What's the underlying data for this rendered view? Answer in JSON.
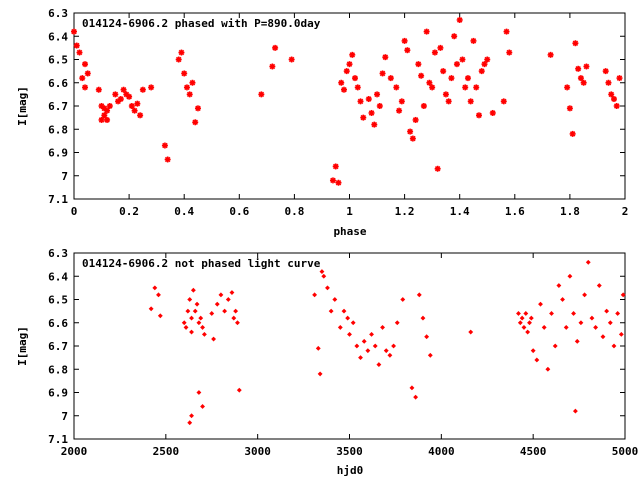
{
  "chart_data": [
    {
      "type": "scatter",
      "title": "014124-6906.2 phased with P=890.0day",
      "xlabel": "phase",
      "ylabel": "I[mag]",
      "xlim": [
        0,
        2
      ],
      "ylim": [
        7.1,
        6.3
      ],
      "y_inverted": true,
      "xticks": [
        "0",
        "0.2",
        "0.4",
        "0.6",
        "0.8",
        "1",
        "1.2",
        "1.4",
        "1.6",
        "1.8",
        "2"
      ],
      "xtick_values": [
        0,
        0.2,
        0.4,
        0.6,
        0.8,
        1.0,
        1.2,
        1.4,
        1.6,
        1.8,
        2.0
      ],
      "yticks": [
        "6.3",
        "6.4",
        "6.5",
        "6.6",
        "6.7",
        "6.8",
        "6.9",
        "7",
        "7.1"
      ],
      "ytick_values": [
        6.3,
        6.4,
        6.5,
        6.6,
        6.7,
        6.8,
        6.9,
        7.0,
        7.1
      ],
      "marker_color": "#ff0000",
      "marker": "asterisk",
      "series": [
        {
          "x": [
            0.0,
            0.01,
            0.02,
            0.03,
            0.04,
            0.04,
            0.05,
            0.09,
            0.1,
            0.1,
            0.11,
            0.11,
            0.12,
            0.12,
            0.13,
            0.15,
            0.16,
            0.17,
            0.18,
            0.19,
            0.2,
            0.21,
            0.22,
            0.23,
            0.24,
            0.25,
            0.28,
            0.33,
            0.34,
            0.38,
            0.39,
            0.4,
            0.41,
            0.42,
            0.43,
            0.44,
            0.45,
            0.68,
            0.72,
            0.73,
            0.79,
            0.94,
            0.95,
            0.96,
            0.97,
            0.98,
            0.99,
            1.0,
            1.01,
            1.02,
            1.03,
            1.04,
            1.05,
            1.07,
            1.08,
            1.09,
            1.1,
            1.11,
            1.12,
            1.13,
            1.15,
            1.17,
            1.18,
            1.19,
            1.2,
            1.21,
            1.22,
            1.23,
            1.24,
            1.25,
            1.26,
            1.27,
            1.28,
            1.29,
            1.3,
            1.31,
            1.32,
            1.33,
            1.34,
            1.35,
            1.36,
            1.37,
            1.38,
            1.39,
            1.4,
            1.41,
            1.42,
            1.43,
            1.44,
            1.45,
            1.46,
            1.47,
            1.48,
            1.49,
            1.5,
            1.52,
            1.56,
            1.57,
            1.58,
            1.73,
            1.79,
            1.8,
            1.81,
            1.82,
            1.83,
            1.84,
            1.85,
            1.86,
            1.93,
            1.94,
            1.95,
            1.96,
            1.97,
            1.98
          ],
          "y": [
            6.38,
            6.44,
            6.47,
            6.58,
            6.52,
            6.62,
            6.56,
            6.63,
            6.7,
            6.76,
            6.74,
            6.71,
            6.76,
            6.72,
            6.7,
            6.65,
            6.68,
            6.67,
            6.63,
            6.65,
            6.66,
            6.7,
            6.72,
            6.69,
            6.74,
            6.63,
            6.62,
            6.87,
            6.93,
            6.5,
            6.47,
            6.56,
            6.62,
            6.65,
            6.6,
            6.77,
            6.71,
            6.65,
            6.53,
            6.45,
            6.5,
            7.02,
            6.96,
            7.03,
            6.6,
            6.63,
            6.55,
            6.52,
            6.48,
            6.58,
            6.62,
            6.68,
            6.75,
            6.67,
            6.73,
            6.78,
            6.65,
            6.7,
            6.56,
            6.49,
            6.58,
            6.62,
            6.72,
            6.68,
            6.42,
            6.46,
            6.81,
            6.84,
            6.76,
            6.52,
            6.57,
            6.7,
            6.38,
            6.6,
            6.62,
            6.47,
            6.97,
            6.45,
            6.55,
            6.65,
            6.68,
            6.58,
            6.4,
            6.52,
            6.33,
            6.5,
            6.62,
            6.58,
            6.68,
            6.42,
            6.62,
            6.74,
            6.55,
            6.52,
            6.5,
            6.73,
            6.68,
            6.38,
            6.47,
            6.48,
            6.62,
            6.71,
            6.82,
            6.43,
            6.54,
            6.58,
            6.6,
            6.53,
            6.55,
            6.6,
            6.65,
            6.67,
            6.7,
            6.58
          ]
        }
      ]
    },
    {
      "type": "scatter",
      "title": "014124-6906.2 not phased light curve",
      "xlabel": "hjd0",
      "ylabel": "I[mag]",
      "xlim": [
        2000,
        5000
      ],
      "ylim": [
        7.1,
        6.3
      ],
      "y_inverted": true,
      "xticks": [
        "2000",
        "2500",
        "3000",
        "3500",
        "4000",
        "4500",
        "5000"
      ],
      "xtick_values": [
        2000,
        2500,
        3000,
        3500,
        4000,
        4500,
        5000
      ],
      "yticks": [
        "6.3",
        "6.4",
        "6.5",
        "6.6",
        "6.7",
        "6.8",
        "6.9",
        "7",
        "7.1"
      ],
      "ytick_values": [
        6.3,
        6.4,
        6.5,
        6.6,
        6.7,
        6.8,
        6.9,
        7.0,
        7.1
      ],
      "marker_color": "#ff0000",
      "marker": "diamond",
      "series": [
        {
          "x": [
            2420,
            2440,
            2460,
            2470,
            2600,
            2610,
            2620,
            2630,
            2640,
            2640,
            2650,
            2660,
            2670,
            2680,
            2690,
            2700,
            2710,
            2750,
            2760,
            2780,
            2800,
            2820,
            2840,
            2860,
            2870,
            2880,
            2890,
            2900,
            2630,
            2640,
            2680,
            2700,
            3310,
            3330,
            3340,
            3350,
            3360,
            3380,
            3400,
            3420,
            3450,
            3470,
            3490,
            3500,
            3520,
            3540,
            3560,
            3580,
            3600,
            3620,
            3640,
            3660,
            3680,
            3700,
            3720,
            3740,
            3760,
            3790,
            3840,
            3860,
            3880,
            3900,
            3920,
            3940,
            4160,
            4420,
            4430,
            4440,
            4450,
            4460,
            4470,
            4480,
            4490,
            4500,
            4520,
            4540,
            4560,
            4580,
            4600,
            4620,
            4640,
            4660,
            4680,
            4700,
            4720,
            4740,
            4760,
            4780,
            4800,
            4820,
            4840,
            4860,
            4880,
            4900,
            4920,
            4940,
            4960,
            4980,
            4990,
            4730
          ],
          "y": [
            6.54,
            6.45,
            6.48,
            6.57,
            6.6,
            6.62,
            6.55,
            6.5,
            6.64,
            6.58,
            6.46,
            6.55,
            6.52,
            6.6,
            6.58,
            6.62,
            6.65,
            6.56,
            6.67,
            6.52,
            6.48,
            6.55,
            6.5,
            6.47,
            6.58,
            6.55,
            6.6,
            6.89,
            7.03,
            7.0,
            6.9,
            6.96,
            6.48,
            6.71,
            6.82,
            6.38,
            6.4,
            6.45,
            6.55,
            6.5,
            6.62,
            6.55,
            6.58,
            6.65,
            6.6,
            6.7,
            6.75,
            6.68,
            6.72,
            6.65,
            6.7,
            6.78,
            6.62,
            6.72,
            6.74,
            6.7,
            6.6,
            6.5,
            6.88,
            6.92,
            6.48,
            6.58,
            6.66,
            6.74,
            6.64,
            6.56,
            6.6,
            6.58,
            6.62,
            6.56,
            6.64,
            6.6,
            6.58,
            6.72,
            6.76,
            6.52,
            6.62,
            6.8,
            6.56,
            6.7,
            6.44,
            6.5,
            6.62,
            6.4,
            6.56,
            6.68,
            6.6,
            6.48,
            6.34,
            6.58,
            6.62,
            6.44,
            6.66,
            6.55,
            6.6,
            6.7,
            6.56,
            6.65,
            6.48,
            6.98
          ]
        }
      ]
    }
  ]
}
